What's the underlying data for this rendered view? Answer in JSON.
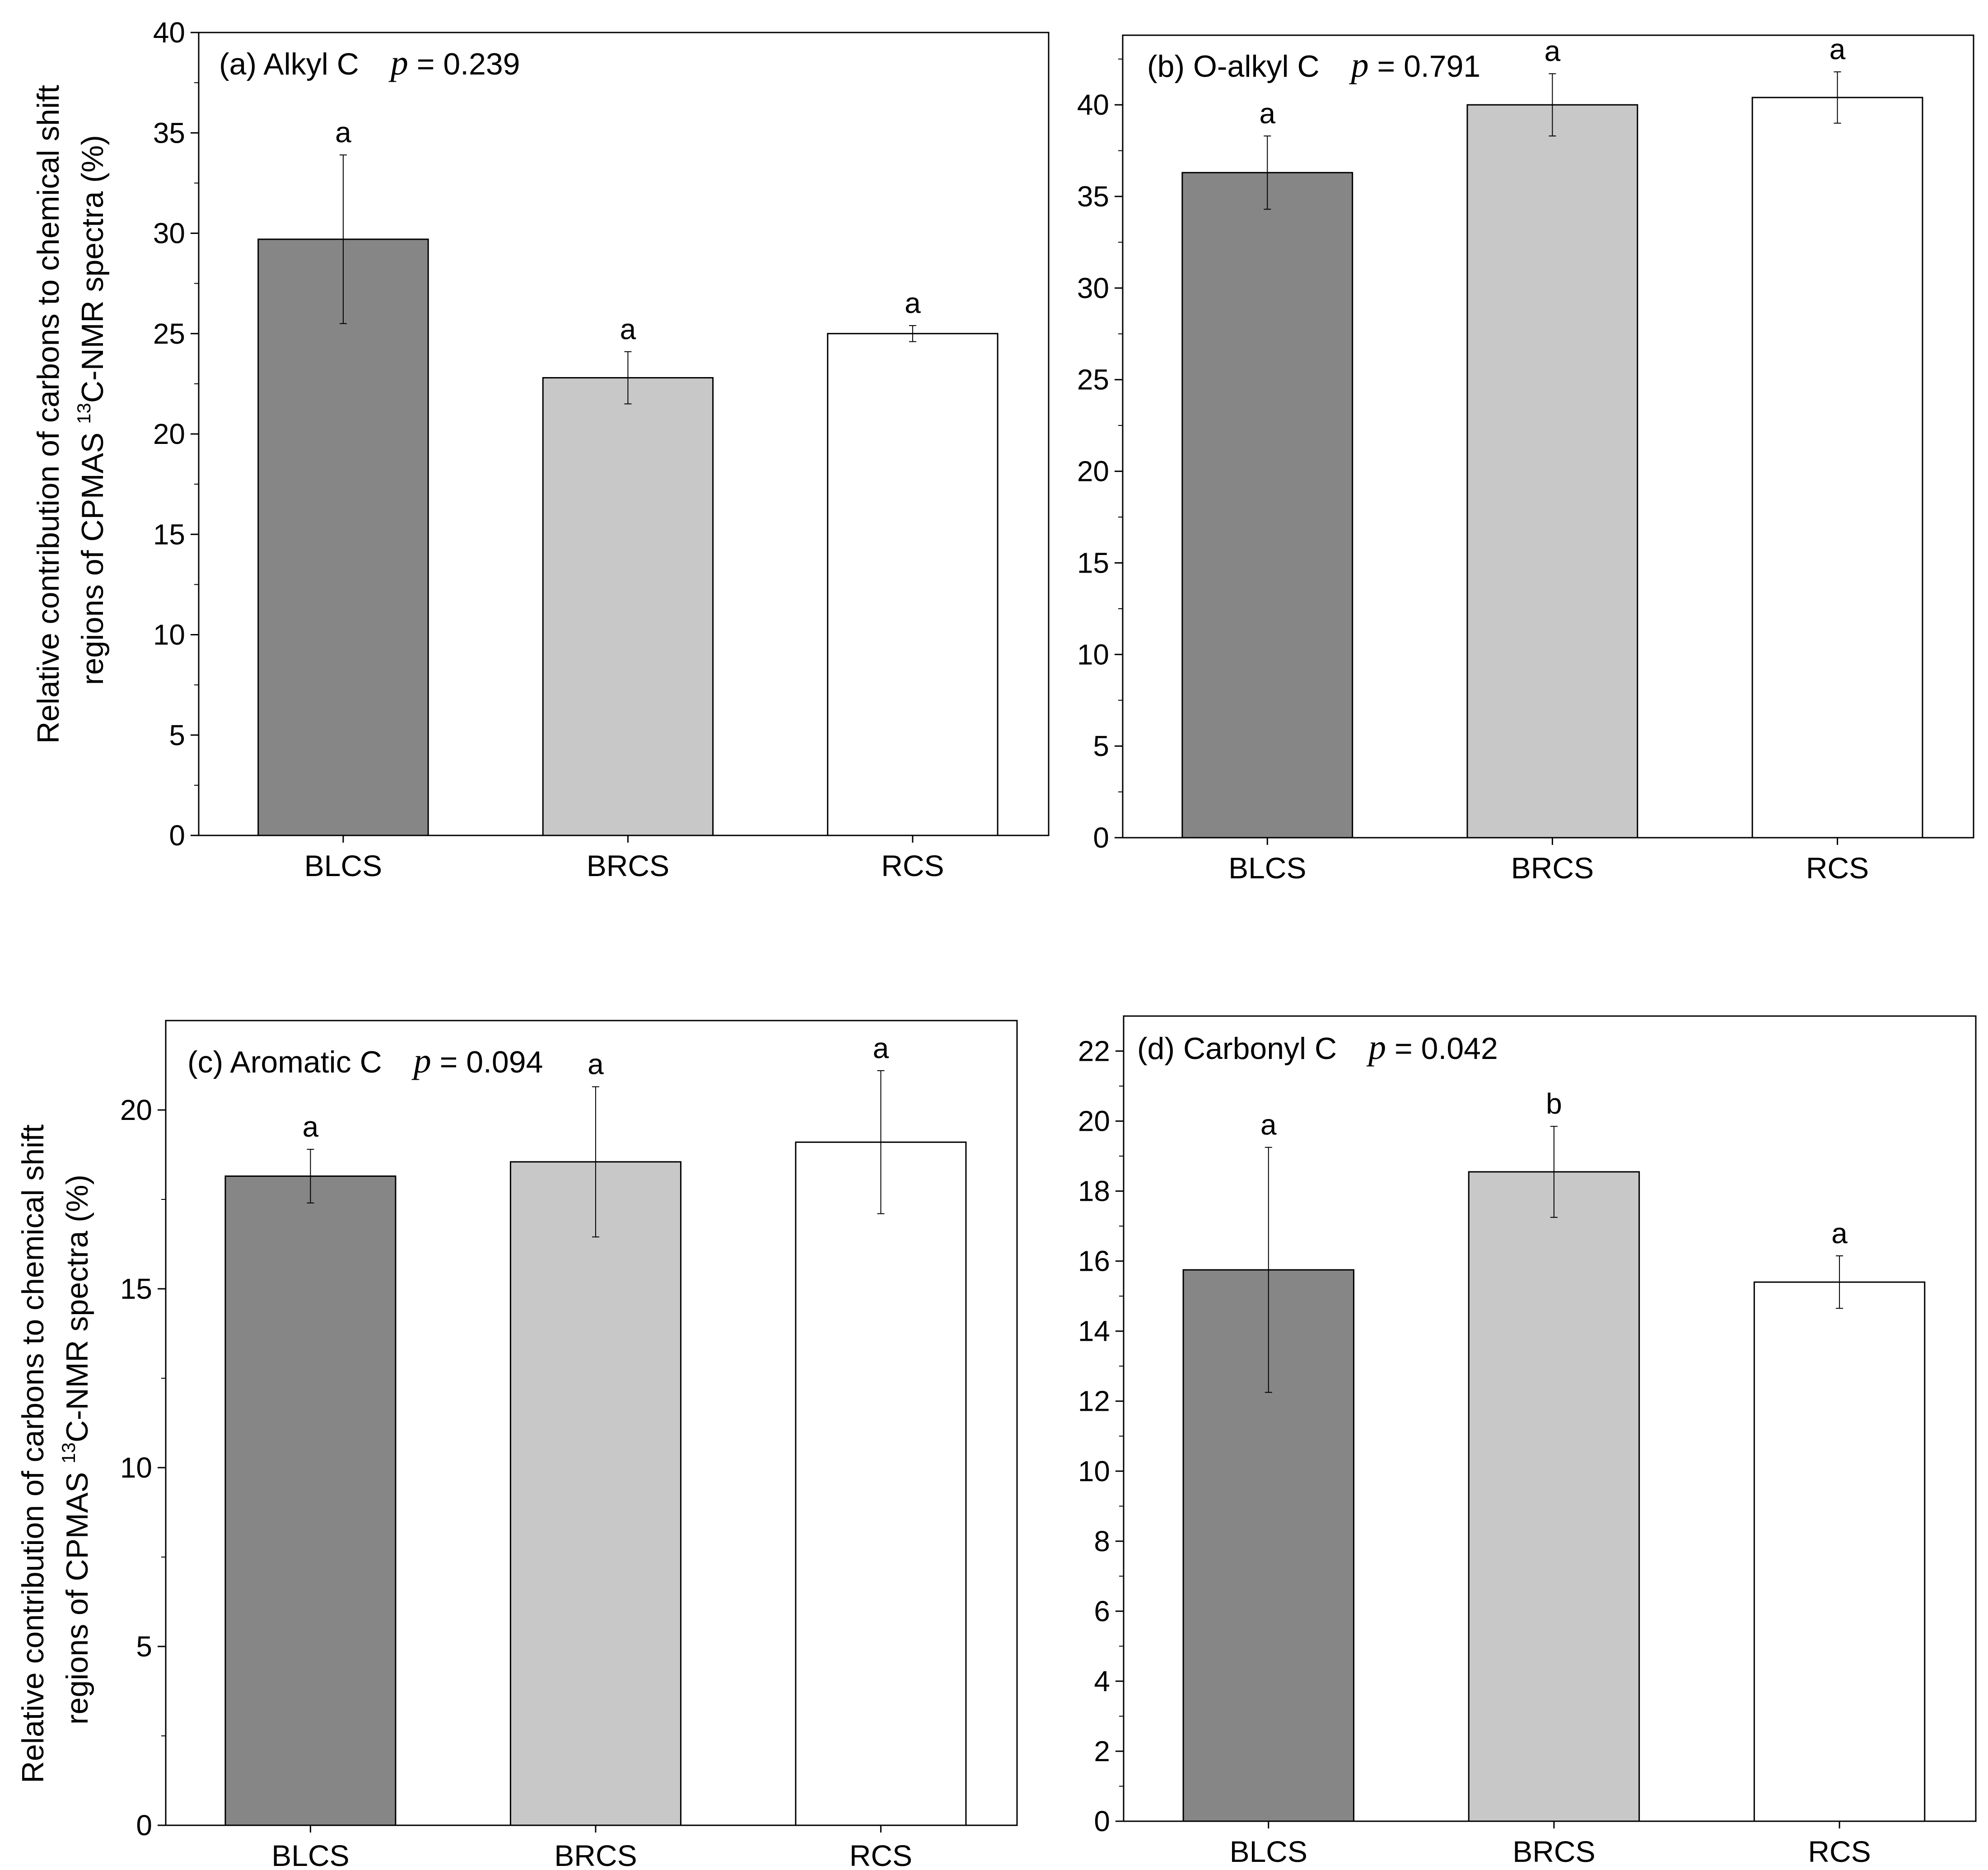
{
  "figure": {
    "ylabel_line1": "Relative contribution of carbons to chemical shift",
    "ylabel_line2_prefix": "regions of CPMAS ",
    "ylabel_superscript": "13",
    "ylabel_line2_suffix": "C-NMR spectra (%)"
  },
  "colors": {
    "BLCS": "#868686",
    "BRCS": "#c8c8c8",
    "RCS": "#ffffff",
    "axis": "#000000"
  },
  "chart_data": [
    {
      "id": "a",
      "type": "bar",
      "panel_label": "(a) Alkyl C",
      "p_symbol": "p",
      "p_text": " = 0.239",
      "categories": [
        "BLCS",
        "BRCS",
        "RCS"
      ],
      "values": [
        29.7,
        22.8,
        25.0
      ],
      "errors": [
        4.2,
        1.3,
        0.4
      ],
      "letters": [
        "a",
        "a",
        "a"
      ],
      "ylim": [
        0,
        40
      ],
      "yticks": [
        0,
        5,
        10,
        15,
        20,
        25,
        30,
        35,
        40
      ],
      "xlabel": "",
      "show_ylabel": true
    },
    {
      "id": "b",
      "type": "bar",
      "panel_label": "(b) O-alkyl C",
      "p_symbol": "p",
      "p_text": " = 0.791",
      "categories": [
        "BLCS",
        "BRCS",
        "RCS"
      ],
      "values": [
        36.3,
        40.0,
        40.4
      ],
      "errors": [
        2.0,
        1.7,
        1.4
      ],
      "letters": [
        "a",
        "a",
        "a"
      ],
      "ylim": [
        0,
        43.8
      ],
      "yticks": [
        0,
        5,
        10,
        15,
        20,
        25,
        30,
        35,
        40
      ],
      "xlabel": "",
      "show_ylabel": false
    },
    {
      "id": "c",
      "type": "bar",
      "panel_label": "(c) Aromatic C",
      "p_symbol": "p",
      "p_text": " = 0.094",
      "categories": [
        "BLCS",
        "BRCS",
        "RCS"
      ],
      "values": [
        18.15,
        18.55,
        19.1
      ],
      "errors": [
        0.75,
        2.1,
        2.0
      ],
      "letters": [
        "a",
        "a",
        "a"
      ],
      "ylim": [
        0,
        22.5
      ],
      "yticks": [
        0,
        5,
        10,
        15,
        20
      ],
      "xlabel": "",
      "show_ylabel": true
    },
    {
      "id": "d",
      "type": "bar",
      "panel_label": "(d) Carbonyl C",
      "p_symbol": "p",
      "p_text": " = 0.042",
      "categories": [
        "BLCS",
        "BRCS",
        "RCS"
      ],
      "values": [
        15.75,
        18.55,
        15.4
      ],
      "errors": [
        3.5,
        1.3,
        0.75
      ],
      "letters": [
        "a",
        "b",
        "a"
      ],
      "ylim": [
        0,
        23.0
      ],
      "yticks": [
        0,
        2,
        4,
        6,
        8,
        10,
        12,
        14,
        16,
        18,
        20,
        22
      ],
      "xlabel": "",
      "show_ylabel": false
    }
  ]
}
